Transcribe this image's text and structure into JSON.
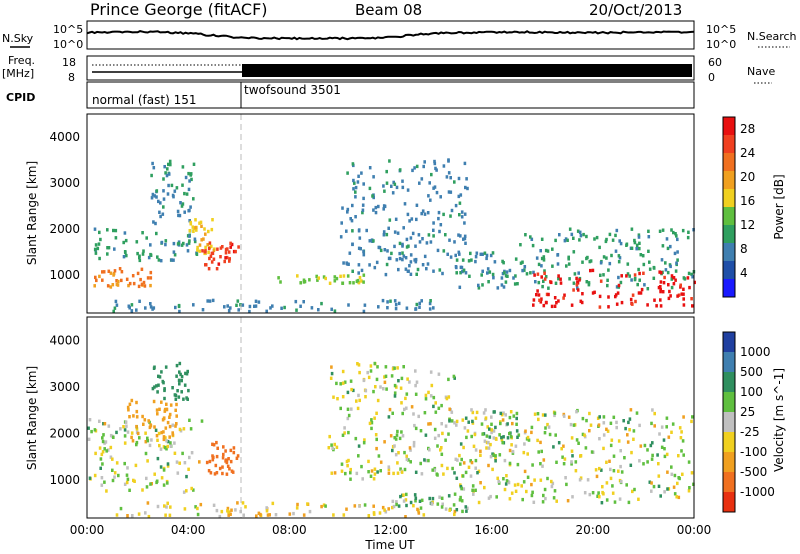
{
  "header": {
    "station": "Prince George (fitACF)",
    "beam": "Beam 08",
    "date": "20/Oct/2013"
  },
  "top_panels": {
    "nsky_label": "N.Sky",
    "nsearch_label": "N.Search",
    "freq_label_1": "Freq.",
    "freq_label_2": "[MHz]",
    "nave_label": "Nave",
    "cpid_label": "CPID",
    "noise_ticks_left": [
      "10^5",
      "10^0"
    ],
    "noise_ticks_right": [
      "10^5",
      "10^0"
    ],
    "freq_ticks": [
      "18",
      "8"
    ],
    "nave_ticks": [
      "60",
      "0"
    ],
    "cpid_segments": [
      {
        "label": "normal (fast) 151",
        "start_hour": 0,
        "end_hour": 6.0
      },
      {
        "label": "twofsound 3501",
        "start_hour": 6.0,
        "end_hour": 24
      }
    ]
  },
  "x_axis": {
    "label": "Time UT",
    "ticks": [
      "00:00",
      "04:00",
      "08:00",
      "12:00",
      "16:00",
      "20:00",
      "00:00"
    ]
  },
  "y_axis": {
    "label": "Slant Range [km]",
    "ticks": [
      "1000",
      "2000",
      "3000",
      "4000"
    ]
  },
  "power_scale": {
    "title": "Power [dB]",
    "ticks": [
      "4",
      "8",
      "12",
      "16",
      "20",
      "24",
      "28"
    ],
    "colors": [
      "#1a1aff",
      "#1f4fa8",
      "#3f7fb0",
      "#2f9f5f",
      "#5fbf3f",
      "#f0d020",
      "#f0a020",
      "#f07020",
      "#f04020",
      "#e81010"
    ]
  },
  "velocity_scale": {
    "title": "Velocity [m s^-1]",
    "ticks": [
      "1000",
      "500",
      "100",
      "25",
      "-25",
      "-100",
      "-500",
      "-1000"
    ],
    "colors": [
      "#2040a0",
      "#3f7fb0",
      "#2f8f5f",
      "#5fbf3f",
      "#c0c0c0",
      "#f0d020",
      "#f0a020",
      "#f07020",
      "#e83010"
    ]
  },
  "chart_data": [
    {
      "type": "line",
      "title": "",
      "series": [
        {
          "name": "N.Sky",
          "values": [
            3.2,
            3.3,
            3.4,
            3.3,
            3.1,
            2.6,
            2.2,
            2.0,
            2.0,
            2.0,
            2.0,
            2.0,
            2.2,
            2.8,
            3.1,
            3.2,
            3.3,
            3.3,
            3.3,
            3.2,
            3.2,
            3.2,
            3.3,
            3.3
          ]
        }
      ],
      "x": [
        0,
        1,
        2,
        3,
        4,
        5,
        6,
        7,
        8,
        9,
        10,
        11,
        12,
        13,
        14,
        15,
        16,
        17,
        18,
        19,
        20,
        21,
        22,
        23
      ],
      "ylabel": "N.Sky",
      "ylim": [
        0,
        5
      ],
      "yscale": "log"
    },
    {
      "type": "heatmap",
      "title": "",
      "quantity": "Power",
      "units": "dB",
      "xlabel": "Time UT",
      "ylabel": "Slant Range [km]",
      "xlim": [
        0,
        24
      ],
      "ylim": [
        180,
        4500
      ],
      "clim": [
        0,
        30
      ],
      "blobs": [
        {
          "t0": 0.0,
          "t1": 2.5,
          "r0": 700,
          "r1": 1150,
          "v": 22
        },
        {
          "t0": 0.2,
          "t1": 4.5,
          "r0": 1300,
          "r1": 2000,
          "v": 10
        },
        {
          "t0": 2.5,
          "t1": 4.2,
          "r0": 2100,
          "r1": 3500,
          "v": 9
        },
        {
          "t0": 4.0,
          "t1": 5.0,
          "r0": 1400,
          "r1": 2200,
          "v": 17
        },
        {
          "t0": 4.5,
          "t1": 6.0,
          "r0": 1100,
          "r1": 1700,
          "v": 26
        },
        {
          "t0": 1.0,
          "t1": 14.5,
          "r0": 200,
          "r1": 450,
          "v": 8
        },
        {
          "t0": 7.5,
          "t1": 11.0,
          "r0": 800,
          "r1": 1000,
          "v": 14
        },
        {
          "t0": 10.0,
          "t1": 15.0,
          "r0": 1000,
          "r1": 3500,
          "v": 8
        },
        {
          "t0": 14.5,
          "t1": 17.0,
          "r0": 700,
          "r1": 1500,
          "v": 9
        },
        {
          "t0": 17.0,
          "t1": 24.0,
          "r0": 700,
          "r1": 2000,
          "v": 10
        },
        {
          "t0": 17.5,
          "t1": 24.0,
          "r0": 300,
          "r1": 1100,
          "v": 28
        }
      ]
    },
    {
      "type": "heatmap",
      "title": "",
      "quantity": "Velocity",
      "units": "m s^-1",
      "xlabel": "Time UT",
      "ylabel": "Slant Range [km]",
      "xlim": [
        0,
        24
      ],
      "ylim": [
        180,
        4500
      ],
      "clim": [
        -1000,
        1000
      ],
      "blobs": [
        {
          "t0": 0.0,
          "t1": 4.5,
          "r0": 700,
          "r1": 2300,
          "v": 0
        },
        {
          "t0": 1.5,
          "t1": 3.5,
          "r0": 1800,
          "r1": 2700,
          "v": -300
        },
        {
          "t0": 2.5,
          "t1": 4.0,
          "r0": 2700,
          "r1": 3500,
          "v": 300
        },
        {
          "t0": 4.5,
          "t1": 6.0,
          "r0": 1100,
          "r1": 1800,
          "v": -700
        },
        {
          "t0": 1.0,
          "t1": 14.5,
          "r0": 200,
          "r1": 500,
          "v": -80
        },
        {
          "t0": 9.5,
          "t1": 14.5,
          "r0": 1000,
          "r1": 3500,
          "v": 0
        },
        {
          "t0": 12.0,
          "t1": 15.0,
          "r0": 300,
          "r1": 700,
          "v": 80
        },
        {
          "t0": 14.5,
          "t1": 24.0,
          "r0": 500,
          "r1": 2500,
          "v": 0
        },
        {
          "t0": 15.5,
          "t1": 17.0,
          "r0": 1400,
          "r1": 2500,
          "v": 80
        }
      ]
    }
  ]
}
